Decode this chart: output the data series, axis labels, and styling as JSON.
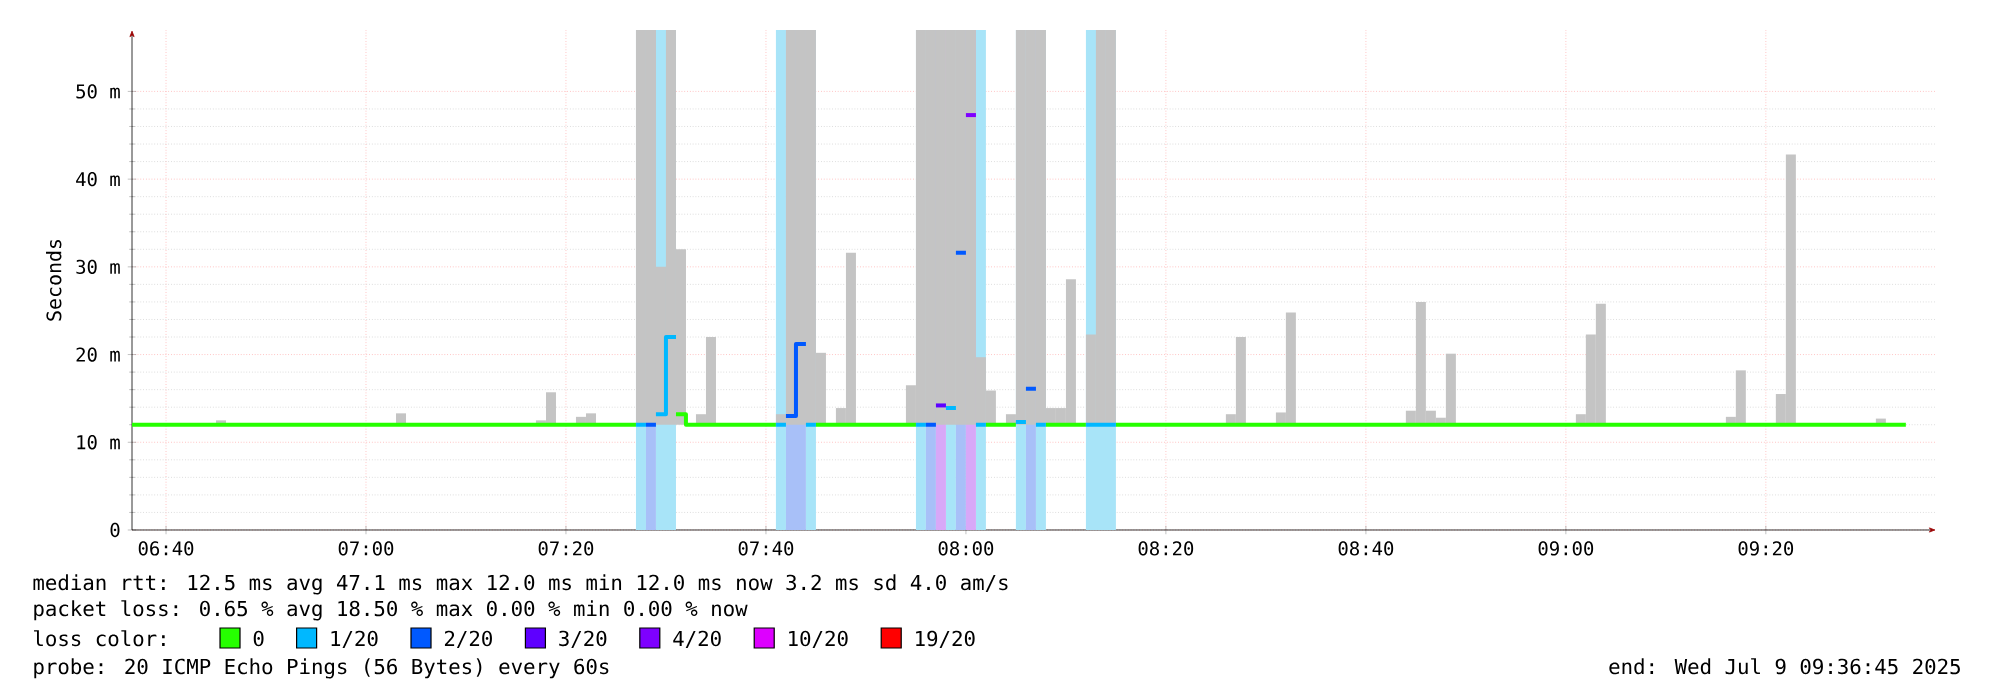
{
  "chart_data": {
    "type": "line",
    "ylabel": "Seconds",
    "xlim": [
      6.61,
      9.617
    ],
    "ylim": [
      0,
      57
    ],
    "xticks": [
      {
        "value": 6.6667,
        "label": "06:40"
      },
      {
        "value": 7,
        "label": "07:00"
      },
      {
        "value": 7.3333,
        "label": "07:20"
      },
      {
        "value": 7.6667,
        "label": "07:40"
      },
      {
        "value": 8,
        "label": "08:00"
      },
      {
        "value": 8.3333,
        "label": "08:20"
      },
      {
        "value": 8.6667,
        "label": "08:40"
      },
      {
        "value": 9,
        "label": "09:00"
      },
      {
        "value": 9.3333,
        "label": "09:20"
      }
    ],
    "yticks": [
      0,
      {
        "value": 10,
        "label": "10 m"
      },
      {
        "value": 20,
        "label": "20 m"
      },
      {
        "value": 30,
        "label": "30 m"
      },
      {
        "value": 40,
        "label": "40 m"
      },
      {
        "value": 50,
        "label": "50 m"
      }
    ],
    "grid": true,
    "legend": "bottom",
    "legend_title": "loss color:",
    "marker": "none",
    "line_style": "solid",
    "annotations": [
      "median rtt:  12.5 ms avg  47.1 ms max  12.0 ms min  12.0 ms now  3.2 ms sd  4.0   am/s",
      "packet loss: 0.65 % avg  18.50 % max  0.00 % min  0.00 % now",
      "probe:       20 ICMP Echo Pings (56 Bytes) every 60s",
      "end: Wed Jul  9 09:36:45 2025"
    ],
    "bands": [
      {
        "axis": "x",
        "from": 7.45,
        "to": 7.4667,
        "color": "#a8e4f8"
      },
      {
        "axis": "x",
        "from": 7.4833,
        "to": 7.5167,
        "color": "#a8e4f8"
      },
      {
        "axis": "x",
        "from": 7.6833,
        "to": 7.7,
        "color": "#a8e4f8"
      },
      {
        "axis": "x",
        "from": 7.7333,
        "to": 7.75,
        "color": "#a8e4f8"
      },
      {
        "axis": "x",
        "from": 7.9167,
        "to": 7.9333,
        "color": "#a8e4f8"
      },
      {
        "axis": "x",
        "from": 7.9667,
        "to": 7.9833,
        "color": "#a8e4f8"
      },
      {
        "axis": "x",
        "from": 8.0167,
        "to": 8.0333,
        "color": "#a8e4f8"
      },
      {
        "axis": "x",
        "from": 8.0833,
        "to": 8.1,
        "color": "#a8e4f8"
      },
      {
        "axis": "x",
        "from": 8.1167,
        "to": 8.1333,
        "color": "#a8e4f8"
      },
      {
        "axis": "x",
        "from": 8.2,
        "to": 8.25,
        "color": "#a8e4f8"
      },
      {
        "axis": "x",
        "from": 7.4667,
        "to": 7.4833,
        "color": "#a8c0f8"
      },
      {
        "axis": "x",
        "from": 7.7,
        "to": 7.7333,
        "color": "#a8c0f8"
      },
      {
        "axis": "x",
        "from": 7.9333,
        "to": 7.95,
        "color": "#a8c0f8"
      },
      {
        "axis": "x",
        "from": 7.9833,
        "to": 8.0,
        "color": "#a8c0f8"
      },
      {
        "axis": "x",
        "from": 8.1,
        "to": 8.1167,
        "color": "#a8c0f8"
      },
      {
        "axis": "x",
        "from": 7.95,
        "to": 7.9667,
        "color": "#d8a8f8"
      },
      {
        "axis": "x",
        "from": 8.0,
        "to": 8.0167,
        "color": "#d8a8f8"
      }
    ],
    "series": [
      {
        "type": "bar",
        "color": "#c4c4c4",
        "x": [
          6.75,
          7.05,
          7.2833,
          7.3,
          7.35,
          7.3667,
          7.45,
          7.4667,
          7.4833,
          7.5,
          7.5167,
          7.55,
          7.5667,
          7.6833,
          7.7,
          7.7167,
          7.7333,
          7.75,
          7.7833,
          7.8,
          7.9,
          7.9167,
          7.9333,
          7.95,
          7.9667,
          7.9833,
          8.0,
          8.0167,
          8.0333,
          8.0667,
          8.0833,
          8.1,
          8.1167,
          8.1333,
          8.15,
          8.1667,
          8.2,
          8.2167,
          8.2333,
          8.4333,
          8.45,
          8.5167,
          8.5333,
          8.7333,
          8.75,
          8.7667,
          8.7833,
          8.8,
          9.0167,
          9.0333,
          9.05,
          9.2667,
          9.2833,
          9.35,
          9.3667,
          9.5167
        ],
        "base": [
          12,
          12,
          12,
          12,
          12,
          12,
          12,
          12,
          12,
          12,
          12,
          12,
          12,
          12,
          12,
          12,
          12,
          12,
          12,
          12,
          12,
          12,
          12,
          12,
          12,
          12,
          12,
          12,
          12,
          12,
          12,
          12,
          12,
          12,
          12,
          12,
          12,
          12,
          12,
          12,
          12,
          12,
          12,
          12,
          12,
          12,
          12,
          12,
          12,
          12,
          12,
          12,
          12,
          12,
          12,
          12
        ],
        "values": [
          0.5,
          1.3,
          0.5,
          3.7,
          0.9,
          1.3,
          45,
          45,
          18,
          45,
          20,
          1.2,
          10,
          1.2,
          45,
          45,
          45,
          8.2,
          1.9,
          19.6,
          4.5,
          45,
          45,
          45,
          45,
          45,
          45,
          7.7,
          3.9,
          1.2,
          45,
          45,
          45,
          1.9,
          1.9,
          16.6,
          10.3,
          45,
          45,
          1.2,
          10,
          1.4,
          12.8,
          1.6,
          14,
          1.6,
          0.8,
          8.1,
          1.2,
          10.3,
          13.8,
          0.9,
          6.2,
          3.5,
          30.8,
          0.7
        ]
      },
      {
        "name": "0",
        "color": "#26ff00",
        "x": [
          6.61,
          7.45,
          null,
          7.5167,
          7.5333,
          7.5333,
          7.6833,
          null,
          7.75,
          7.9167,
          null,
          8.0333,
          8.0833,
          null,
          8.1333,
          8.2,
          null,
          8.25,
          9.5667
        ],
        "values": [
          12,
          12,
          null,
          13.2,
          13.2,
          12,
          12,
          null,
          12,
          12,
          null,
          12,
          12,
          null,
          12,
          12,
          null,
          12,
          12
        ]
      },
      {
        "name": "1/20",
        "color": "#00b8ff",
        "x": [
          7.45,
          7.4667,
          null,
          7.4833,
          7.5,
          7.5,
          7.5167,
          null,
          7.6833,
          7.7,
          null,
          7.7333,
          7.75,
          null,
          7.9167,
          7.9333,
          null,
          7.9667,
          7.9833,
          null,
          8.0167,
          8.0333,
          null,
          8.0833,
          8.1,
          null,
          8.1167,
          8.1333,
          null,
          8.2,
          8.25
        ],
        "values": [
          12,
          12,
          null,
          13.2,
          13.2,
          22,
          22,
          null,
          12,
          12,
          null,
          12,
          12,
          null,
          12,
          12,
          null,
          13.9,
          13.9,
          null,
          12,
          12,
          null,
          12.3,
          12.3,
          null,
          12,
          12,
          null,
          12,
          12
        ]
      },
      {
        "name": "2/20",
        "color": "#0059ff",
        "x": [
          7.4667,
          7.4833,
          null,
          7.7,
          7.7167,
          7.7167,
          7.7333,
          null,
          7.9333,
          7.95,
          null,
          7.9833,
          8.0,
          null,
          8.1,
          8.1167
        ],
        "values": [
          12,
          12,
          null,
          13,
          13,
          21.2,
          21.2,
          null,
          12,
          12,
          null,
          31.6,
          31.6,
          null,
          16.1,
          16.1
        ]
      },
      {
        "name": "3/20",
        "color": "#5e00ff",
        "x": [
          7.95,
          7.9667
        ],
        "values": [
          14.2,
          14.2
        ]
      },
      {
        "name": "4/20",
        "color": "#7e00ff",
        "x": [
          8.0,
          8.0167
        ],
        "values": [
          47.3,
          47.3
        ]
      },
      {
        "name": "10/20",
        "color": "#dd00ff"
      },
      {
        "name": "19/20",
        "color": "#ff0000"
      }
    ]
  }
}
